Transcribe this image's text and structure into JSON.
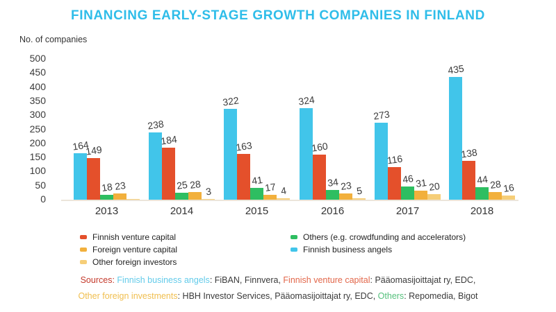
{
  "title": "FINANCING EARLY-STAGE GROWTH COMPANIES IN FINLAND",
  "title_color": "#2FBDE9",
  "y_axis_label": "No. of companies",
  "chart_data": {
    "type": "bar",
    "categories": [
      "2013",
      "2014",
      "2015",
      "2016",
      "2017",
      "2018"
    ],
    "series": [
      {
        "name": "Finnish business angels",
        "color": "#41C5EA",
        "values": [
          164,
          238,
          322,
          324,
          273,
          435
        ]
      },
      {
        "name": "Finnish venture capital",
        "color": "#E4502B",
        "values": [
          149,
          184,
          163,
          160,
          116,
          138
        ]
      },
      {
        "name": "Others (e.g. crowdfunding and accelerators)",
        "color": "#2EBE61",
        "values": [
          18,
          25,
          41,
          34,
          46,
          44
        ]
      },
      {
        "name": "Foreign venture capital",
        "color": "#F2B03C",
        "values": [
          23,
          28,
          17,
          23,
          31,
          28
        ]
      },
      {
        "name": "Other foreign investors",
        "color": "#F6CE78",
        "values": [
          null,
          3,
          4,
          5,
          20,
          16
        ]
      }
    ],
    "title": "FINANCING EARLY-STAGE GROWTH COMPANIES IN FINLAND",
    "xlabel": "",
    "ylabel": "No. of companies",
    "ylim": [
      0,
      500
    ],
    "ytick_step": 50,
    "grid": false,
    "legend_position": "bottom"
  },
  "legend": {
    "columns": [
      {
        "items": [
          {
            "label": "Finnish venture capital",
            "color": "#E4502B"
          },
          {
            "label": "Foreign venture capital",
            "color": "#F2B03C"
          },
          {
            "label": "Other foreign investors",
            "color": "#F6CE78"
          }
        ]
      },
      {
        "items": [
          {
            "label": "Others (e.g. crowdfunding and accelerators)",
            "color": "#2EBE61"
          },
          {
            "label": "Finnish business angels",
            "color": "#41C5EA"
          }
        ]
      }
    ]
  },
  "sources": {
    "lines": [
      [
        {
          "text": "Sources: ",
          "color": "#C4392B"
        },
        {
          "text": "Finnish business angels",
          "color": "#63CBEA"
        },
        {
          "text": ": FiBAN, Finnvera, ",
          "color": "#3a3a3a"
        },
        {
          "text": "Finnish venture capital",
          "color": "#E2674A"
        },
        {
          "text": ": Pääomasijoittajat ry, EDC,",
          "color": "#3a3a3a"
        }
      ],
      [
        {
          "text": "Other foreign investments",
          "color": "#F0BE4E"
        },
        {
          "text": ": HBH Investor Services, Pääomasijoittajat ry, EDC, ",
          "color": "#3a3a3a"
        },
        {
          "text": "Others",
          "color": "#55C07C"
        },
        {
          "text": ": Repomedia, Bigot",
          "color": "#3a3a3a"
        }
      ]
    ]
  }
}
